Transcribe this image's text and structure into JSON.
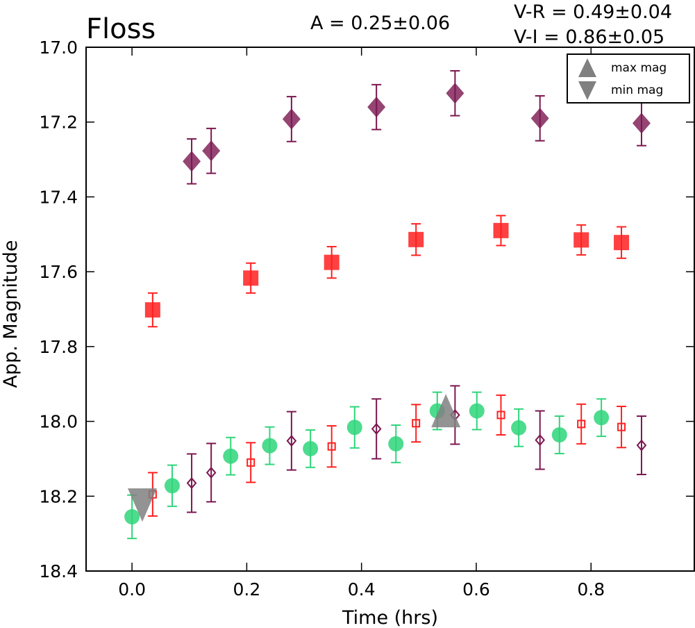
{
  "chart_data": {
    "type": "scatter",
    "title": "Floss",
    "annotations": {
      "amplitude": "A  = 0.25±0.06",
      "v_minus_r": "V-R = 0.49±0.04",
      "v_minus_i": "V-I  = 0.86±0.05"
    },
    "xlabel": "Time (hrs)",
    "ylabel": "App. Magnitude",
    "xlim": [
      -0.08,
      0.98
    ],
    "ylim": [
      18.4,
      17.0
    ],
    "y_inverted": true,
    "x_ticks": [
      "0.0",
      "0.2",
      "0.4",
      "0.6",
      "0.8"
    ],
    "y_ticks": [
      "17.0",
      "17.2",
      "17.4",
      "17.6",
      "17.8",
      "18.0",
      "18.2",
      "18.4"
    ],
    "grid": false,
    "legend": {
      "placement": "top-right",
      "entries": [
        {
          "label": "max mag",
          "marker": "triangle-up",
          "color": "#808080"
        },
        {
          "label": "min mag",
          "marker": "triangle-down",
          "color": "#808080"
        }
      ]
    },
    "series": [
      {
        "marker": "diamond-filled",
        "color": "#7b1650",
        "points": [
          {
            "x": 0.104,
            "y": 17.305,
            "err": 0.06
          },
          {
            "x": 0.138,
            "y": 17.277,
            "err": 0.06
          },
          {
            "x": 0.278,
            "y": 17.192,
            "err": 0.06
          },
          {
            "x": 0.426,
            "y": 17.16,
            "err": 0.06
          },
          {
            "x": 0.563,
            "y": 17.123,
            "err": 0.06
          },
          {
            "x": 0.711,
            "y": 17.19,
            "err": 0.06
          },
          {
            "x": 0.888,
            "y": 17.203,
            "err": 0.06
          }
        ]
      },
      {
        "marker": "square-filled",
        "color": "#ff2020",
        "points": [
          {
            "x": 0.036,
            "y": 17.702,
            "err": 0.045
          },
          {
            "x": 0.207,
            "y": 17.617,
            "err": 0.04
          },
          {
            "x": 0.348,
            "y": 17.575,
            "err": 0.042
          },
          {
            "x": 0.495,
            "y": 17.514,
            "err": 0.042
          },
          {
            "x": 0.643,
            "y": 17.49,
            "err": 0.04
          },
          {
            "x": 0.783,
            "y": 17.515,
            "err": 0.04
          },
          {
            "x": 0.853,
            "y": 17.522,
            "err": 0.042
          }
        ]
      },
      {
        "marker": "circle-filled",
        "color": "#2ed57a",
        "points": [
          {
            "x": 0.0,
            "y": 18.255,
            "err": 0.058
          },
          {
            "x": 0.07,
            "y": 18.172,
            "err": 0.055
          },
          {
            "x": 0.172,
            "y": 18.093,
            "err": 0.05
          },
          {
            "x": 0.24,
            "y": 18.065,
            "err": 0.05
          },
          {
            "x": 0.311,
            "y": 18.073,
            "err": 0.05
          },
          {
            "x": 0.388,
            "y": 18.016,
            "err": 0.055
          },
          {
            "x": 0.46,
            "y": 18.06,
            "err": 0.05
          },
          {
            "x": 0.532,
            "y": 17.972,
            "err": 0.05
          },
          {
            "x": 0.601,
            "y": 17.972,
            "err": 0.05
          },
          {
            "x": 0.674,
            "y": 18.017,
            "err": 0.05
          },
          {
            "x": 0.745,
            "y": 18.036,
            "err": 0.05
          },
          {
            "x": 0.818,
            "y": 17.99,
            "err": 0.05
          }
        ]
      },
      {
        "marker": "square-open",
        "color": "#ff2020",
        "points": [
          {
            "x": 0.036,
            "y": 18.195,
            "err": 0.058
          },
          {
            "x": 0.207,
            "y": 18.11,
            "err": 0.053
          },
          {
            "x": 0.348,
            "y": 18.067,
            "err": 0.055
          },
          {
            "x": 0.495,
            "y": 18.005,
            "err": 0.05
          },
          {
            "x": 0.643,
            "y": 17.983,
            "err": 0.053
          },
          {
            "x": 0.783,
            "y": 18.007,
            "err": 0.053
          },
          {
            "x": 0.853,
            "y": 18.015,
            "err": 0.055
          }
        ]
      },
      {
        "marker": "diamond-open",
        "color": "#7b1650",
        "points": [
          {
            "x": 0.104,
            "y": 18.165,
            "err": 0.078
          },
          {
            "x": 0.138,
            "y": 18.137,
            "err": 0.078
          },
          {
            "x": 0.278,
            "y": 18.052,
            "err": 0.078
          },
          {
            "x": 0.426,
            "y": 18.02,
            "err": 0.08
          },
          {
            "x": 0.563,
            "y": 17.983,
            "err": 0.078
          },
          {
            "x": 0.711,
            "y": 18.05,
            "err": 0.078
          },
          {
            "x": 0.888,
            "y": 18.064,
            "err": 0.078
          }
        ]
      }
    ],
    "extrema": [
      {
        "type": "min",
        "x": 0.018,
        "y": 18.205,
        "color": "#808080"
      },
      {
        "type": "max",
        "x": 0.547,
        "y": 17.99,
        "color": "#808080"
      }
    ]
  }
}
